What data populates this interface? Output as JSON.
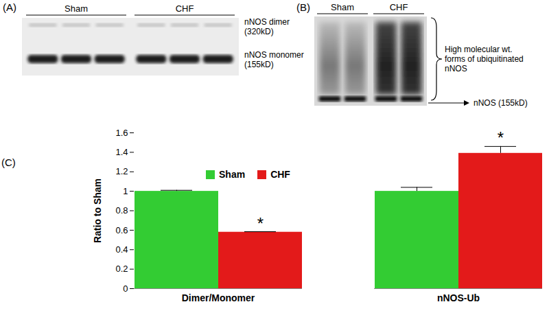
{
  "blot_panels": [
    {
      "label": "(A)",
      "groups": [
        "Sham",
        "CHF"
      ],
      "band_labels": [
        {
          "lines": [
            "nNOS dimer",
            "(320kD)"
          ]
        },
        {
          "lines": [
            "nNOS monomer",
            "(155kD)"
          ]
        }
      ]
    },
    {
      "label": "(B)",
      "groups": [
        "Sham",
        "CHF"
      ],
      "brace_label": [
        "High molecular wt.",
        "forms of ubiquitinated",
        "nNOS"
      ],
      "arrow_label": "nNOS (155kD)"
    }
  ],
  "chart_data": {
    "type": "bar",
    "panel_label": "(C)",
    "categories": [
      "Dimer/Monomer",
      "nNOS-Ub"
    ],
    "series": [
      {
        "name": "Sham",
        "color": "#33cc33",
        "values": [
          1,
          1
        ],
        "errors": [
          0.01,
          0.04
        ]
      },
      {
        "name": "CHF",
        "color": "#e31a1a",
        "values": [
          0.58,
          1.39
        ],
        "errors": [
          0.005,
          0.07
        ]
      }
    ],
    "ylabel": "Ratio to Sham",
    "ylim": [
      0,
      1.6
    ],
    "yticks": [
      0,
      0.2,
      0.4,
      0.6,
      0.8,
      1,
      1.2,
      1.4,
      1.6
    ],
    "legend": "top",
    "annotations": [
      {
        "text": "*",
        "series": "CHF",
        "category": "Dimer/Monomer"
      },
      {
        "text": "*",
        "series": "CHF",
        "category": "nNOS-Ub"
      }
    ]
  }
}
